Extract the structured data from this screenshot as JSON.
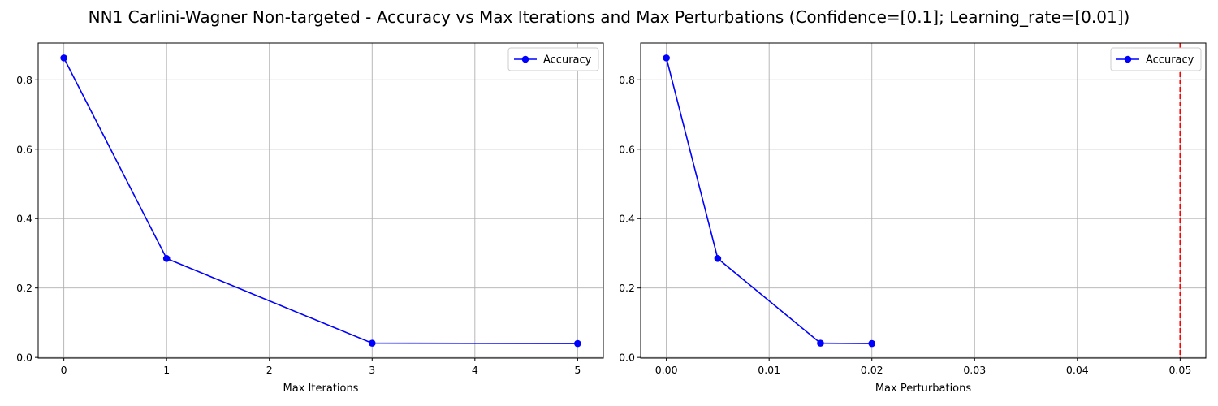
{
  "figure": {
    "suptitle": "NN1 Carlini-Wagner Non-targeted - Accuracy vs Max Iterations and Max Perturbations (Confidence=[0.1]; Learning_rate=[0.01])"
  },
  "colors": {
    "series": "#0000ff",
    "reference_line": "#ff0000",
    "grid": "#b0b0b0"
  },
  "chart_data": [
    {
      "type": "line",
      "xlabel": "Max Iterations",
      "ylabel": "",
      "x": [
        0,
        1,
        3,
        5
      ],
      "series": [
        {
          "name": "Accuracy",
          "values": [
            0.863,
            0.285,
            0.041,
            0.04
          ],
          "color": "#0000ff",
          "marker": "circle"
        }
      ],
      "xlim": [
        -0.25,
        5.25
      ],
      "ylim": [
        -0.002,
        0.906
      ],
      "xticks": [
        0,
        1,
        2,
        3,
        4,
        5
      ],
      "xtick_labels": [
        "0",
        "1",
        "2",
        "3",
        "4",
        "5"
      ],
      "yticks": [
        0.0,
        0.2,
        0.4,
        0.6,
        0.8
      ],
      "ytick_labels": [
        "0.0",
        "0.2",
        "0.4",
        "0.6",
        "0.8"
      ],
      "grid": true,
      "legend": "upper right"
    },
    {
      "type": "line",
      "xlabel": "Max Perturbations",
      "ylabel": "",
      "x": [
        0.0,
        0.005,
        0.015,
        0.02
      ],
      "series": [
        {
          "name": "Accuracy",
          "values": [
            0.863,
            0.285,
            0.041,
            0.04
          ],
          "color": "#0000ff",
          "marker": "circle"
        }
      ],
      "reference_line": {
        "orientation": "vertical",
        "x": 0.05,
        "style": "dashed",
        "color": "#ff0000"
      },
      "xlim": [
        -0.0025,
        0.0525
      ],
      "ylim": [
        -0.002,
        0.906
      ],
      "xticks": [
        0.0,
        0.01,
        0.02,
        0.03,
        0.04,
        0.05
      ],
      "xtick_labels": [
        "0.00",
        "0.01",
        "0.02",
        "0.03",
        "0.04",
        "0.05"
      ],
      "yticks": [
        0.0,
        0.2,
        0.4,
        0.6,
        0.8
      ],
      "ytick_labels": [
        "0.0",
        "0.2",
        "0.4",
        "0.6",
        "0.8"
      ],
      "grid": true,
      "legend": "upper right"
    }
  ]
}
